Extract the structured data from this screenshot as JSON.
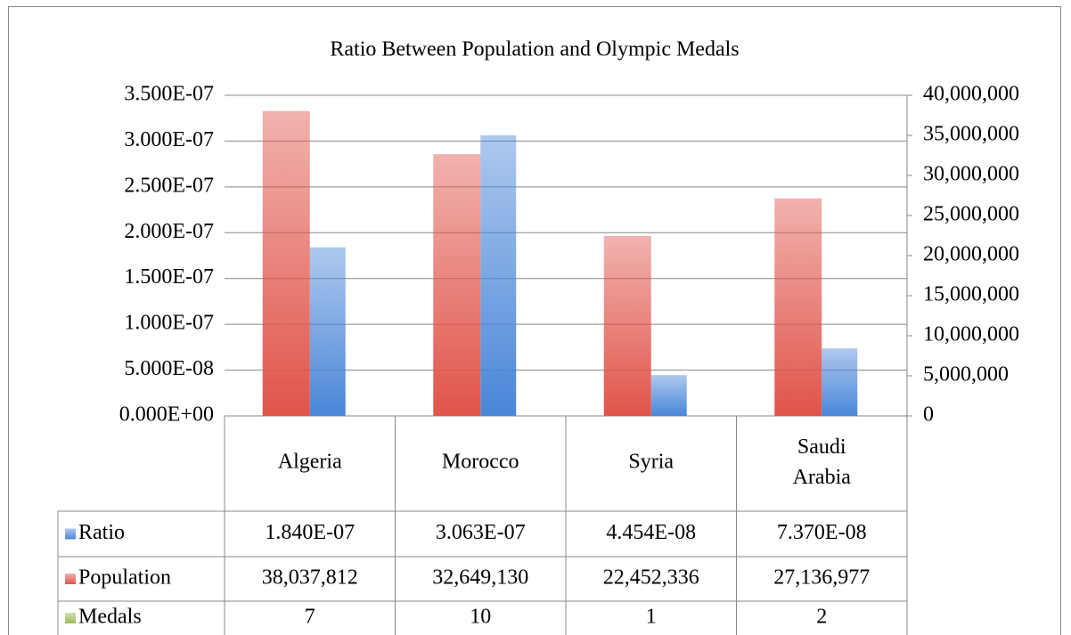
{
  "chart_data": {
    "type": "bar",
    "title": "Ratio Between Population and Olympic Medals",
    "categories": [
      "Algeria",
      "Morocco",
      "Syria",
      "Saudi Arabia"
    ],
    "series": [
      {
        "name": "Ratio",
        "color": "#4a86d8",
        "values": [
          1.84e-07,
          3.063e-07,
          4.454e-08,
          7.37e-08
        ],
        "value_labels": [
          "1.840E-07",
          "3.063E-07",
          "4.454E-08",
          "7.370E-08"
        ]
      },
      {
        "name": "Population",
        "color": "#e0544a",
        "axis": "y2",
        "values": [
          38037812,
          32649130,
          22452336,
          27136977
        ],
        "value_labels": [
          "38,037,812",
          "32,649,130",
          "22,452,336",
          "27,136,977"
        ]
      },
      {
        "name": "Medals",
        "color": "#9bbb59",
        "axis": "y2",
        "values": [
          7,
          10,
          1,
          2
        ]
      }
    ],
    "ylim": [
      0,
      3.5e-07
    ],
    "yticks": [
      {
        "value": 0,
        "label": "0.000E+00"
      },
      {
        "value": 5e-08,
        "label": "5.000E-08"
      },
      {
        "value": 1e-07,
        "label": "1.000E-07"
      },
      {
        "value": 1.5e-07,
        "label": "1.500E-07"
      },
      {
        "value": 2e-07,
        "label": "2.000E-07"
      },
      {
        "value": 2.5e-07,
        "label": "2.500E-07"
      },
      {
        "value": 3e-07,
        "label": "3.000E-07"
      },
      {
        "value": 3.5e-07,
        "label": "3.500E-07"
      }
    ],
    "y2lim": [
      0,
      40000000
    ],
    "y2ticks": [
      0,
      {
        "value": 5000000,
        "label": "5,000,000"
      },
      {
        "value": 10000000,
        "label": "10,000,000"
      },
      {
        "value": 15000000,
        "label": "15,000,000"
      },
      {
        "value": 20000000,
        "label": "20,000,000"
      },
      {
        "value": 25000000,
        "label": "25,000,000"
      },
      {
        "value": 30000000,
        "label": "30,000,000"
      },
      {
        "value": 35000000,
        "label": "35,000,000"
      },
      {
        "value": 40000000,
        "label": "40,000,000"
      }
    ],
    "grid": true
  }
}
